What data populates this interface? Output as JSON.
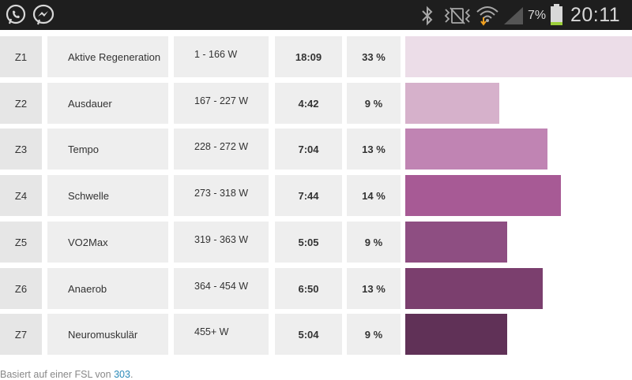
{
  "statusbar": {
    "battery_percent": "7%",
    "time": "20:11",
    "icons": [
      "whatsapp-icon",
      "messenger-icon",
      "bluetooth-icon",
      "vibrate-icon",
      "wifi-icon",
      "signal-icon",
      "battery-icon"
    ]
  },
  "zones": [
    {
      "code": "Z1",
      "name": "Aktive Regeneration",
      "range": "1 - 166 W",
      "time": "18:09",
      "percent": "33 %",
      "bar_fraction": 1.0,
      "color": "#ecdde8"
    },
    {
      "code": "Z2",
      "name": "Ausdauer",
      "range": "167 - 227 W",
      "time": "4:42",
      "percent": "9 %",
      "bar_fraction": 0.415,
      "color": "#d6b1cb"
    },
    {
      "code": "Z3",
      "name": "Tempo",
      "range": "228 - 272 W",
      "time": "7:04",
      "percent": "13 %",
      "bar_fraction": 0.627,
      "color": "#c084b3"
    },
    {
      "code": "Z4",
      "name": "Schwelle",
      "range": "273 - 318 W",
      "time": "7:44",
      "percent": "14 %",
      "bar_fraction": 0.686,
      "color": "#a75a95"
    },
    {
      "code": "Z5",
      "name": "VO2Max",
      "range": "319 - 363 W",
      "time": "5:05",
      "percent": "9 %",
      "bar_fraction": 0.449,
      "color": "#8e4e82"
    },
    {
      "code": "Z6",
      "name": "Anaerob",
      "range": "364 - 454 W",
      "time": "6:50",
      "percent": "13 %",
      "bar_fraction": 0.606,
      "color": "#7b3f6e"
    },
    {
      "code": "Z7",
      "name": "Neuromuskulär",
      "range": "455+ W",
      "time": "5:04",
      "percent": "9 %",
      "bar_fraction": 0.449,
      "color": "#603157"
    }
  ],
  "footnote": {
    "prefix": "Basiert auf einer FSL von",
    "value": "303",
    "suffix": "."
  }
}
